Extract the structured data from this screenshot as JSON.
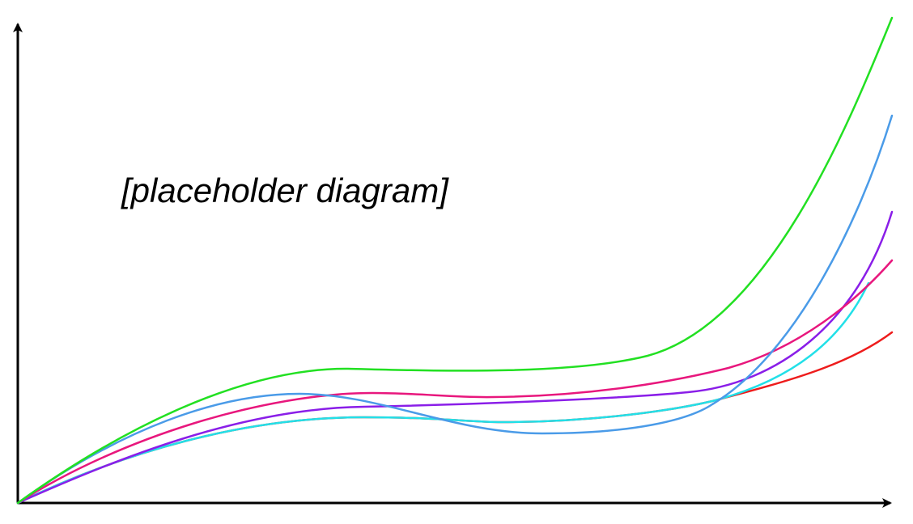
{
  "label": "[placeholder diagram]"
}
